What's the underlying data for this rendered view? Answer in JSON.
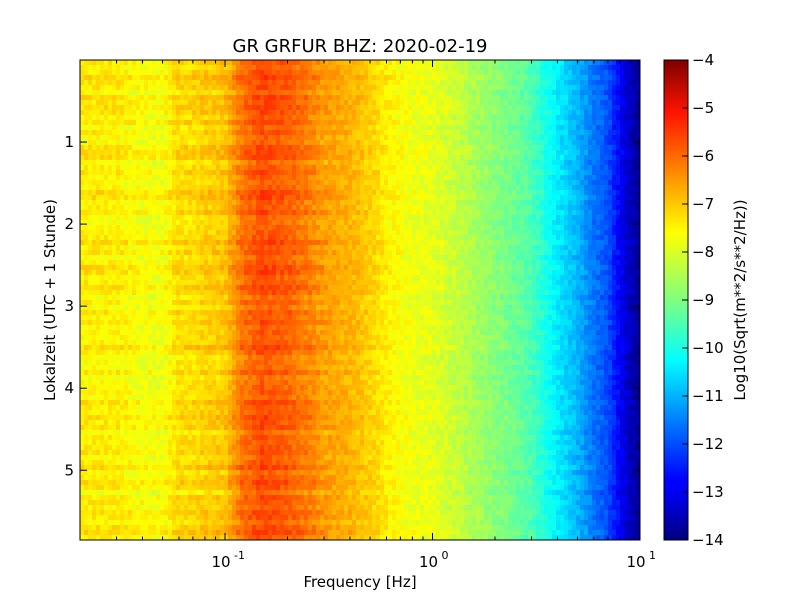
{
  "chart_data": {
    "type": "heatmap",
    "title": "GR GRFUR BHZ: 2020-02-19",
    "xlabel": "Frequency [Hz]",
    "ylabel": "Lokalzeit (UTC + 1 Stunde)",
    "colorbar_label": "Log10(Sqrt(m**2/s**2/Hz))",
    "x_scale": "log",
    "xlim": [
      0.02,
      10
    ],
    "ylim": [
      5.85,
      0.0
    ],
    "y_inverted": true,
    "clim": [
      -14,
      -4
    ],
    "colormap": "jet",
    "x_ticks": [
      {
        "value": 0.1,
        "base": "10",
        "exp": "-1"
      },
      {
        "value": 1,
        "base": "10",
        "exp": "0"
      },
      {
        "value": 10,
        "base": "10",
        "exp": "1"
      }
    ],
    "y_ticks": [
      {
        "value": 1,
        "label": "1"
      },
      {
        "value": 2,
        "label": "2"
      },
      {
        "value": 3,
        "label": "3"
      },
      {
        "value": 4,
        "label": "4"
      },
      {
        "value": 5,
        "label": "5"
      }
    ],
    "colorbar_ticks": [
      {
        "value": -4,
        "label": "−4"
      },
      {
        "value": -5,
        "label": "−5"
      },
      {
        "value": -6,
        "label": "−6"
      },
      {
        "value": -7,
        "label": "−7"
      },
      {
        "value": -8,
        "label": "−8"
      },
      {
        "value": -9,
        "label": "−9"
      },
      {
        "value": -10,
        "label": "−10"
      },
      {
        "value": -11,
        "label": "−11"
      },
      {
        "value": -12,
        "label": "−12"
      },
      {
        "value": -13,
        "label": "−13"
      },
      {
        "value": -14,
        "label": "−14"
      }
    ],
    "spectrum_profile": {
      "frequencies": [
        0.02,
        0.03,
        0.04,
        0.05,
        0.06,
        0.07,
        0.08,
        0.1,
        0.12,
        0.15,
        0.2,
        0.25,
        0.3,
        0.4,
        0.5,
        0.6,
        0.7,
        0.8,
        1.0,
        1.3,
        1.6,
        2.0,
        2.5,
        3.0,
        3.5,
        4.0,
        5.0,
        6.0,
        7.0,
        8.0,
        9.0,
        10.0
      ],
      "log_psd": [
        -7.6,
        -7.6,
        -7.8,
        -7.85,
        -7.4,
        -7.4,
        -7.3,
        -7.2,
        -6.4,
        -6.0,
        -6.2,
        -6.5,
        -6.8,
        -7.0,
        -7.3,
        -7.6,
        -7.8,
        -7.9,
        -8.0,
        -8.3,
        -8.6,
        -8.9,
        -9.2,
        -9.5,
        -10.0,
        -10.4,
        -11.0,
        -11.6,
        -12.0,
        -12.8,
        -13.4,
        -13.8
      ]
    }
  }
}
